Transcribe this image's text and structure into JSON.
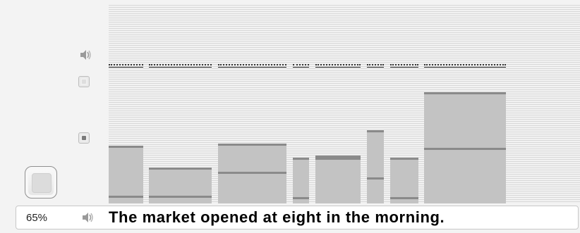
{
  "status_bar": {
    "zoom": "65%",
    "sentence": "The market opened at eight in the morning."
  },
  "controls": {
    "top_speaker_icon": "speaker-icon",
    "option_1_icon": "checkbox-icon",
    "option_2_icon": "checkbox-checked-icon",
    "record_button_icon": "square-button-icon"
  },
  "word_segments": [
    {
      "word": "The",
      "pitch": 0.29,
      "reference": 0.03
    },
    {
      "word": "market",
      "pitch": 0.18,
      "reference": 0.03
    },
    {
      "word": "opened",
      "pitch": 0.3,
      "reference": 0.15
    },
    {
      "word": "at",
      "pitch": 0.23,
      "reference": 0.02
    },
    {
      "word": "eight",
      "pitch": 0.24,
      "reference": 0.22
    },
    {
      "word": "in",
      "pitch": 0.37,
      "reference": 0.12
    },
    {
      "word": "the",
      "pitch": 0.23,
      "reference": 0.02
    },
    {
      "word": "morning.",
      "pitch": 0.56,
      "reference": 0.27
    }
  ],
  "colors": {
    "bar": "#c3c3c3",
    "reference_line": "#8a8a8a",
    "stage_line": "#d8d8d8",
    "selected_dot": "#7a7a7a",
    "unselected_dot": "#dedede"
  }
}
